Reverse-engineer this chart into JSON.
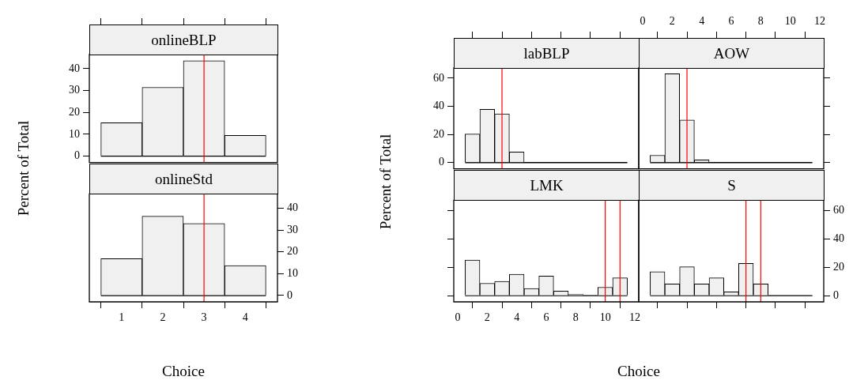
{
  "chart_data": [
    {
      "type": "histogram",
      "title": "onlineBLP",
      "ylabel": "Percent of Total",
      "bins": [
        0.5,
        1.5,
        2.5,
        3.5,
        4.5
      ],
      "values": [
        15.3,
        31.5,
        43.7,
        9.5
      ],
      "color": "#f0f0f0",
      "xlim": [
        0.22,
        4.78
      ],
      "xticks": [
        1,
        2,
        3,
        4
      ],
      "ylim": [
        -2.9,
        46.5
      ],
      "yticks": [
        0,
        10,
        20,
        30,
        40
      ],
      "tick_labels": "y",
      "ref_lines": [
        {
          "axis": "x",
          "value": 3,
          "color": "#ff0000"
        }
      ]
    },
    {
      "type": "histogram",
      "title": "onlineStd",
      "xlabel": "Choice",
      "bins": [
        0.5,
        1.5,
        2.5,
        3.5,
        4.5
      ],
      "values": [
        16.9,
        36.3,
        33.0,
        13.7
      ],
      "color": "#f0f0f0",
      "xlim": [
        0.22,
        4.78
      ],
      "xticks": [
        1,
        2,
        3,
        4
      ],
      "ylim": [
        -2.9,
        46.5
      ],
      "yticks": [
        0,
        10,
        20,
        30,
        40
      ],
      "ref_lines": [
        {
          "axis": "x",
          "value": 3,
          "color": "#ff0000"
        }
      ]
    },
    {
      "type": "histogram",
      "title": "labBLP",
      "ylabel": "Percent of Total",
      "bins": [
        0.5,
        1.5,
        2.5,
        3.5,
        4.5,
        5.5,
        6.5,
        7.5,
        8.5,
        9.5,
        10.5,
        11.5
      ],
      "values": [
        20.3,
        37.9,
        34.6,
        7.6,
        0,
        0,
        0,
        0,
        0,
        0,
        0
      ],
      "color": "#f0f0f0",
      "xlim": [
        -0.27,
        12.27
      ],
      "xticks": [
        0,
        2,
        4,
        6,
        8,
        10,
        12
      ],
      "ylim": [
        -4.4,
        67.3
      ],
      "yticks": [
        0,
        20,
        40,
        60
      ],
      "tick_labels": "y",
      "ref_lines": [
        {
          "axis": "x",
          "value": 3,
          "color": "#ff0000"
        }
      ]
    },
    {
      "type": "histogram",
      "title": "AOW",
      "bins": [
        0.5,
        1.5,
        2.5,
        3.5,
        4.5,
        5.5,
        6.5,
        7.5,
        8.5,
        9.5,
        10.5,
        11.5
      ],
      "values": [
        5.2,
        63.2,
        30.3,
        1.9,
        0,
        0,
        0,
        0,
        0,
        0,
        0
      ],
      "color": "#f0f0f0",
      "xlim": [
        -0.27,
        12.27
      ],
      "xticks": [
        0,
        2,
        4,
        6,
        8,
        10,
        12
      ],
      "ylim": [
        -4.4,
        67.3
      ],
      "yticks": [
        0,
        20,
        40,
        60
      ],
      "tick_labels": "x",
      "ref_lines": [
        {
          "axis": "x",
          "value": 3,
          "color": "#ff0000"
        }
      ]
    },
    {
      "type": "histogram",
      "title": "LMK",
      "xlabel": "Choice",
      "bins": [
        0.5,
        1.5,
        2.5,
        3.5,
        4.5,
        5.5,
        6.5,
        7.5,
        8.5,
        9.5,
        10.5,
        11.5
      ],
      "values": [
        25.1,
        8.7,
        10.0,
        15.1,
        5.0,
        13.8,
        3.2,
        0.9,
        0,
        5.9,
        12.5
      ],
      "color": "#f0f0f0",
      "xlim": [
        -0.27,
        12.27
      ],
      "xticks": [
        0,
        2,
        4,
        6,
        8,
        10,
        12
      ],
      "ylim": [
        -4.4,
        67.3
      ],
      "yticks": [
        0,
        20,
        40,
        60
      ],
      "tick_labels": "x",
      "ref_lines": [
        {
          "axis": "x",
          "value": 10,
          "color": "#ff0000"
        },
        {
          "axis": "x",
          "value": 11,
          "color": "#ff0000"
        }
      ]
    },
    {
      "type": "histogram",
      "title": "S",
      "bins": [
        0.5,
        1.5,
        2.5,
        3.5,
        4.5,
        5.5,
        6.5,
        7.5,
        8.5,
        9.5,
        10.5,
        11.5
      ],
      "values": [
        16.9,
        8.2,
        20.3,
        8.2,
        12.5,
        2.6,
        22.7,
        8.2,
        0,
        0,
        0
      ],
      "color": "#f0f0f0",
      "xlim": [
        -0.27,
        12.27
      ],
      "xticks": [
        0,
        2,
        4,
        6,
        8,
        10,
        12
      ],
      "ylim": [
        -4.4,
        67.3
      ],
      "yticks": [
        0,
        20,
        40,
        60
      ],
      "tick_labels": "y",
      "ref_lines": [
        {
          "axis": "x",
          "value": 7,
          "color": "#ff0000"
        },
        {
          "axis": "x",
          "value": 8,
          "color": "#ff0000"
        }
      ]
    }
  ]
}
